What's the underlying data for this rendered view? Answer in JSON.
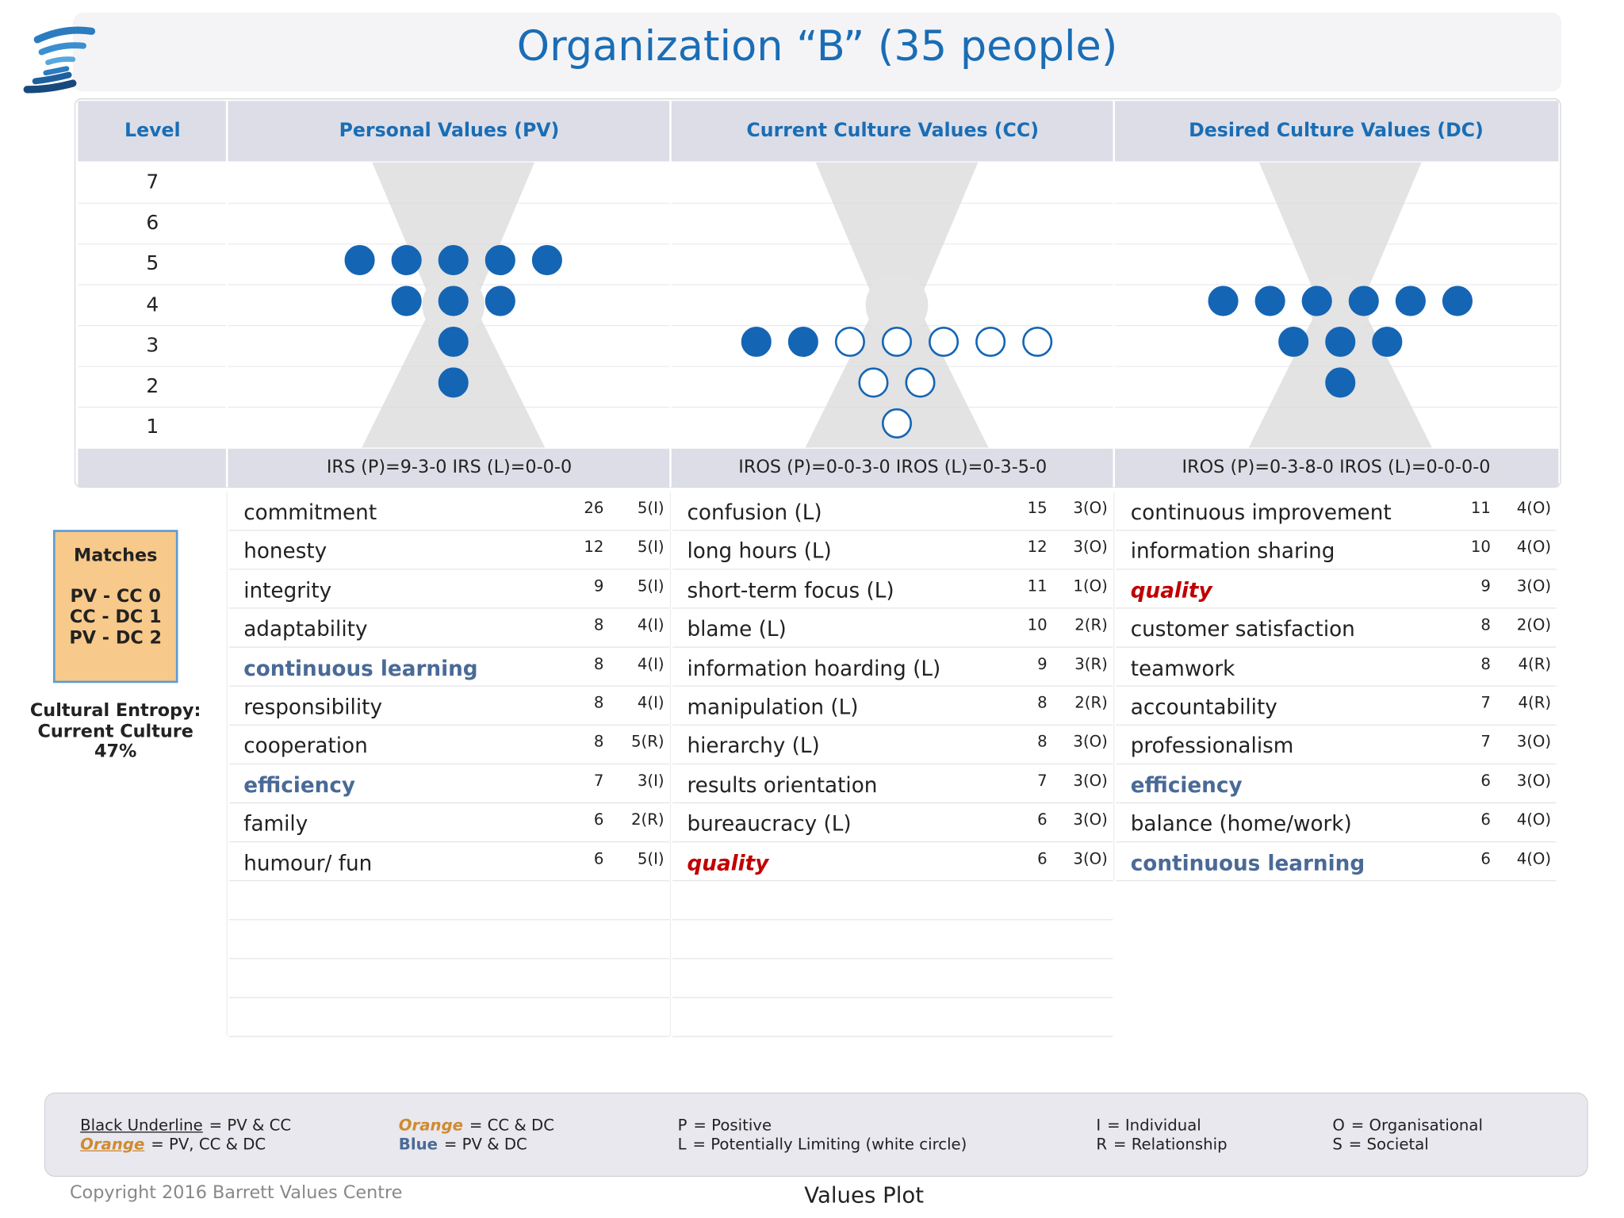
{
  "header": {
    "title": "Organization “B” (35 people)"
  },
  "table": {
    "level_header": "Level",
    "levels": [
      "7",
      "6",
      "5",
      "4",
      "3",
      "2",
      "1"
    ],
    "columns": [
      {
        "title": "Personal Values (PV)",
        "irs": "IRS (P)=9-3-0  IRS (L)=0-0-0",
        "values": [
          {
            "name": "commitment",
            "count": 26,
            "level": "5(I)",
            "style": "normal"
          },
          {
            "name": "honesty",
            "count": 12,
            "level": "5(I)",
            "style": "normal"
          },
          {
            "name": "integrity",
            "count": 9,
            "level": "5(I)",
            "style": "normal"
          },
          {
            "name": "adaptability",
            "count": 8,
            "level": "4(I)",
            "style": "normal"
          },
          {
            "name": "continuous learning",
            "count": 8,
            "level": "4(I)",
            "style": "blue"
          },
          {
            "name": "responsibility",
            "count": 8,
            "level": "4(I)",
            "style": "normal"
          },
          {
            "name": "cooperation",
            "count": 8,
            "level": "5(R)",
            "style": "normal"
          },
          {
            "name": "efficiency",
            "count": 7,
            "level": "3(I)",
            "style": "blue"
          },
          {
            "name": "family",
            "count": 6,
            "level": "2(R)",
            "style": "normal"
          },
          {
            "name": "humour/ fun",
            "count": 6,
            "level": "5(I)",
            "style": "normal"
          }
        ]
      },
      {
        "title": "Current Culture Values (CC)",
        "irs": "IROS (P)=0-0-3-0  IROS (L)=0-3-5-0",
        "values": [
          {
            "name": "confusion (L)",
            "count": 15,
            "level": "3(O)",
            "style": "normal"
          },
          {
            "name": "long hours (L)",
            "count": 12,
            "level": "3(O)",
            "style": "normal"
          },
          {
            "name": "short-term focus (L)",
            "count": 11,
            "level": "1(O)",
            "style": "normal"
          },
          {
            "name": "blame (L)",
            "count": 10,
            "level": "2(R)",
            "style": "normal"
          },
          {
            "name": "information hoarding (L)",
            "count": 9,
            "level": "3(R)",
            "style": "normal"
          },
          {
            "name": "manipulation (L)",
            "count": 8,
            "level": "2(R)",
            "style": "normal"
          },
          {
            "name": "hierarchy (L)",
            "count": 8,
            "level": "3(O)",
            "style": "normal"
          },
          {
            "name": "results orientation",
            "count": 7,
            "level": "3(O)",
            "style": "normal"
          },
          {
            "name": "bureaucracy (L)",
            "count": 6,
            "level": "3(O)",
            "style": "normal"
          },
          {
            "name": "quality",
            "count": 6,
            "level": "3(O)",
            "style": "red"
          }
        ]
      },
      {
        "title": "Desired Culture Values (DC)",
        "irs": "IROS (P)=0-3-8-0  IROS (L)=0-0-0-0",
        "values": [
          {
            "name": "continuous improvement",
            "count": 11,
            "level": "4(O)",
            "style": "normal"
          },
          {
            "name": "information sharing",
            "count": 10,
            "level": "4(O)",
            "style": "normal"
          },
          {
            "name": "quality",
            "count": 9,
            "level": "3(O)",
            "style": "red"
          },
          {
            "name": "customer satisfaction",
            "count": 8,
            "level": "2(O)",
            "style": "normal"
          },
          {
            "name": "teamwork",
            "count": 8,
            "level": "4(R)",
            "style": "normal"
          },
          {
            "name": "accountability",
            "count": 7,
            "level": "4(R)",
            "style": "normal"
          },
          {
            "name": "professionalism",
            "count": 7,
            "level": "3(O)",
            "style": "normal"
          },
          {
            "name": "efficiency",
            "count": 6,
            "level": "3(O)",
            "style": "blue"
          },
          {
            "name": "balance (home/work)",
            "count": 6,
            "level": "4(O)",
            "style": "normal"
          },
          {
            "name": "continuous learning",
            "count": 6,
            "level": "4(O)",
            "style": "blue"
          }
        ]
      }
    ]
  },
  "matches": {
    "title": "Matches",
    "lines": [
      "PV - CC 0",
      "CC - DC 1",
      "PV - DC 2"
    ]
  },
  "entropy": {
    "lines": [
      "Cultural Entropy:",
      "Current Culture",
      "47%"
    ]
  },
  "legend": [
    {
      "term": "Black Underline",
      "def": "= PV & CC",
      "style": "underline"
    },
    {
      "term": "Orange",
      "def": "= PV, CC & DC",
      "style": "orange-underline"
    },
    {
      "term": "Orange",
      "def": "= CC & DC",
      "style": "orange"
    },
    {
      "term": "Blue",
      "def": "= PV & DC",
      "style": "blue"
    },
    {
      "term": "P",
      "def": "= Positive",
      "style": "normal"
    },
    {
      "term": "L",
      "def": "= Potentially Limiting (white circle)",
      "style": "normal"
    },
    {
      "term": "I",
      "def": "= Individual",
      "style": "normal"
    },
    {
      "term": "R",
      "def": "= Relationship",
      "style": "normal"
    },
    {
      "term": "O",
      "def": "= Organisational",
      "style": "normal"
    },
    {
      "term": "S",
      "def": "= Societal",
      "style": "normal"
    }
  ],
  "footer": {
    "copyright": "Copyright 2016 Barrett Values Centre",
    "caption": "Values Plot"
  }
}
